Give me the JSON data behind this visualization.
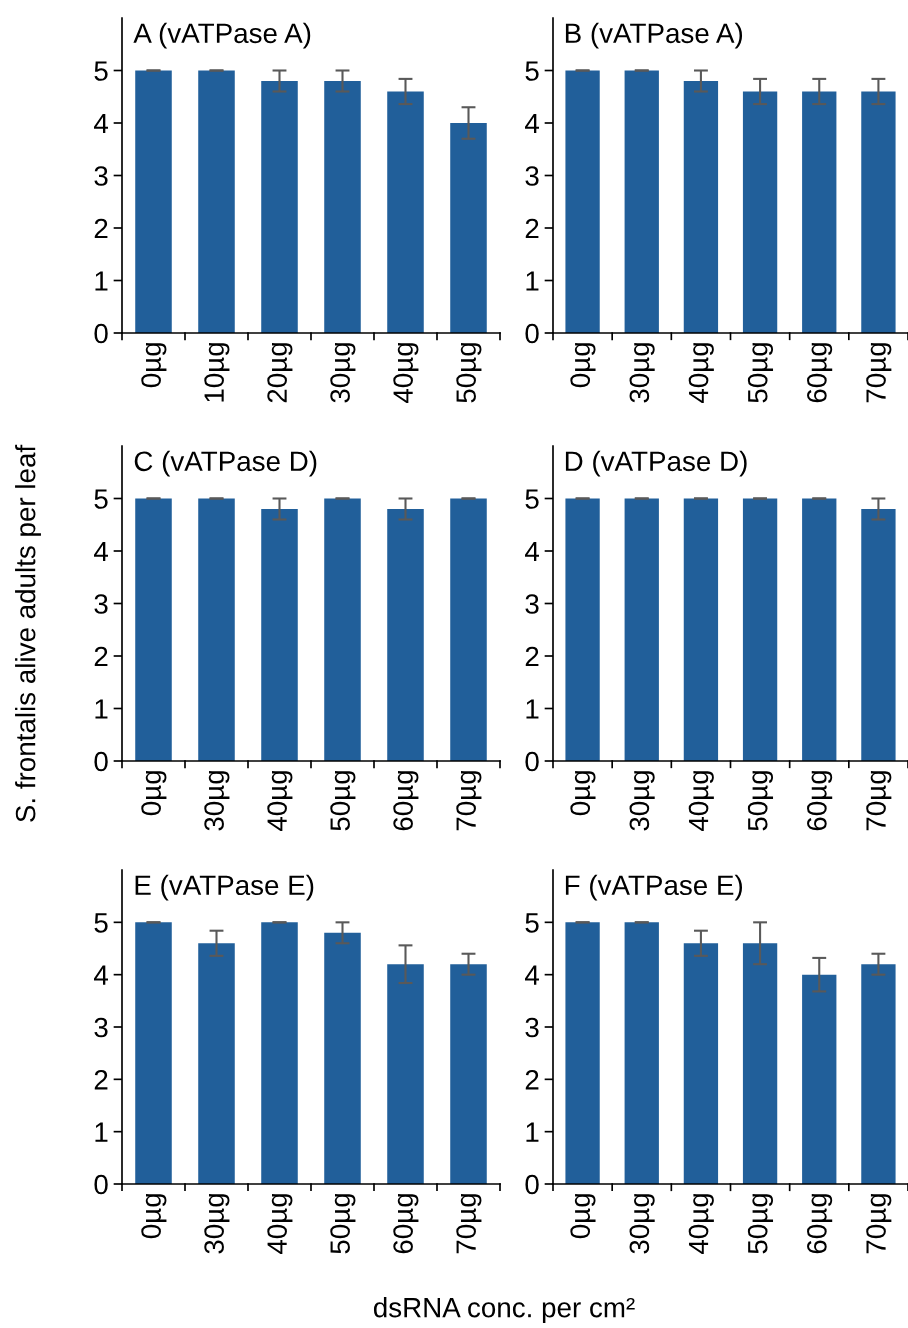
{
  "chart_data": [
    {
      "type": "bar",
      "title": "A (vATPase A)",
      "categories": [
        "0µg",
        "10µg",
        "20µg",
        "30µg",
        "40µg",
        "50µg"
      ],
      "values": [
        5,
        5,
        4.8,
        4.8,
        4.6,
        4.0
      ],
      "errors": [
        0,
        0,
        0.2,
        0.2,
        0.24,
        0.3
      ],
      "color": "#215f9a",
      "ylim": [
        0,
        6
      ],
      "yticks": [
        0,
        1,
        2,
        3,
        4,
        5
      ],
      "grid": false,
      "legend": false
    },
    {
      "type": "bar",
      "title": "B (vATPase A)",
      "categories": [
        "0µg",
        "30µg",
        "40µg",
        "50µg",
        "60µg",
        "70µg"
      ],
      "values": [
        5,
        5,
        4.8,
        4.6,
        4.6,
        4.6
      ],
      "errors": [
        0,
        0,
        0.2,
        0.24,
        0.24,
        0.24
      ],
      "color": "#215f9a",
      "ylim": [
        0,
        6
      ],
      "yticks": [
        0,
        1,
        2,
        3,
        4,
        5
      ],
      "grid": false,
      "legend": false
    },
    {
      "type": "bar",
      "title": "C (vATPase D)",
      "ylabel": "S. frontalis alive adults per leaf",
      "categories": [
        "0µg",
        "30µg",
        "40µg",
        "50µg",
        "60µg",
        "70µg"
      ],
      "values": [
        5,
        5,
        4.8,
        5,
        4.8,
        5
      ],
      "errors": [
        0,
        0,
        0.2,
        0,
        0.2,
        0
      ],
      "color": "#215f9a",
      "ylim": [
        0,
        6
      ],
      "yticks": [
        0,
        1,
        2,
        3,
        4,
        5
      ],
      "grid": false,
      "legend": false
    },
    {
      "type": "bar",
      "title": "D (vATPase D)",
      "categories": [
        "0µg",
        "30µg",
        "40µg",
        "50µg",
        "60µg",
        "70µg"
      ],
      "values": [
        5,
        5,
        5,
        5,
        5,
        4.8
      ],
      "errors": [
        0,
        0,
        0,
        0,
        0,
        0.2
      ],
      "color": "#215f9a",
      "ylim": [
        0,
        6
      ],
      "yticks": [
        0,
        1,
        2,
        3,
        4,
        5
      ],
      "grid": false,
      "legend": false
    },
    {
      "type": "bar",
      "title": "E (vATPase E)",
      "xlabel": "dsRNA conc. per cm²",
      "categories": [
        "0µg",
        "30µg",
        "40µg",
        "50µg",
        "60µg",
        "70µg"
      ],
      "values": [
        5,
        4.6,
        5,
        4.8,
        4.2,
        4.2
      ],
      "errors": [
        0,
        0.24,
        0,
        0.2,
        0.36,
        0.2
      ],
      "color": "#215f9a",
      "ylim": [
        0,
        6
      ],
      "yticks": [
        0,
        1,
        2,
        3,
        4,
        5
      ],
      "grid": false,
      "legend": false
    },
    {
      "type": "bar",
      "title": "F (vATPase E)",
      "categories": [
        "0µg",
        "30µg",
        "40µg",
        "50µg",
        "60µg",
        "70µg"
      ],
      "values": [
        5,
        5,
        4.6,
        4.6,
        4.0,
        4.2
      ],
      "errors": [
        0,
        0,
        0.24,
        0.4,
        0.32,
        0.2
      ],
      "color": "#215f9a",
      "ylim": [
        0,
        6
      ],
      "yticks": [
        0,
        1,
        2,
        3,
        4,
        5
      ],
      "grid": false,
      "legend": false
    }
  ]
}
